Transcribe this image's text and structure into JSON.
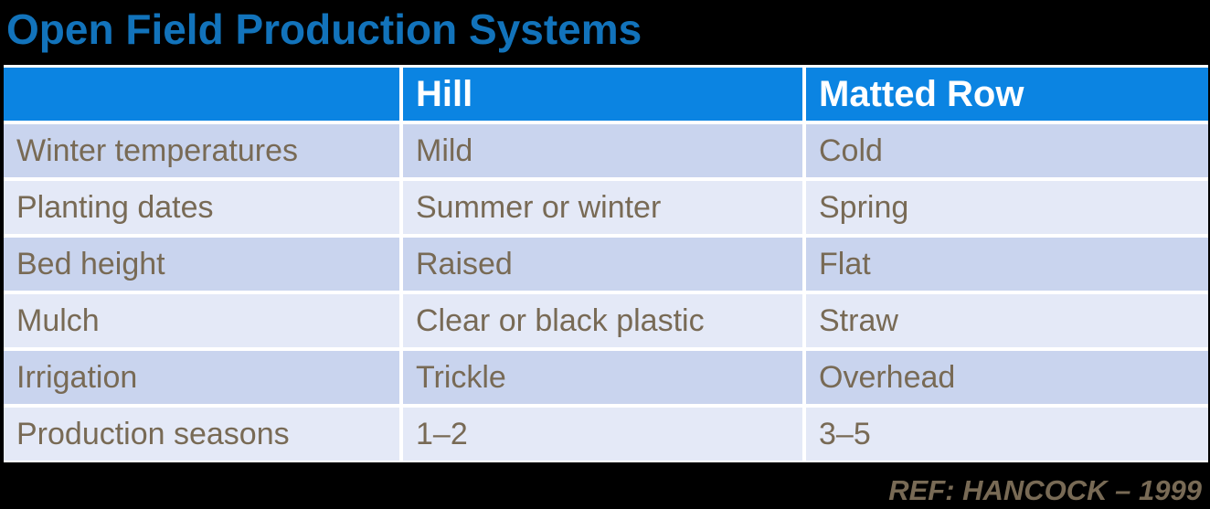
{
  "title": "Open Field Production Systems",
  "reference": "REF: HANCOCK – 1999",
  "colors": {
    "background": "#000000",
    "title_text": "#1273bb",
    "header_fill": "#0b84e2",
    "header_text": "#ffffff",
    "row_dark": "#c9d4ee",
    "row_light": "#e4e9f7",
    "body_text": "#786a55",
    "grid_border": "#ffffff"
  },
  "table": {
    "columns": [
      "",
      "Hill",
      "Matted Row"
    ],
    "rows": [
      {
        "cells": [
          "Winter temperatures",
          "Mild",
          "Cold"
        ]
      },
      {
        "cells": [
          "Planting dates",
          "Summer or winter",
          "Spring"
        ]
      },
      {
        "cells": [
          "Bed height",
          "Raised",
          "Flat"
        ]
      },
      {
        "cells": [
          "Mulch",
          "Clear or black plastic",
          "Straw"
        ]
      },
      {
        "cells": [
          "Irrigation",
          "Trickle",
          "Overhead"
        ]
      },
      {
        "cells": [
          "Production seasons",
          "1–2",
          "3–5"
        ]
      }
    ]
  }
}
